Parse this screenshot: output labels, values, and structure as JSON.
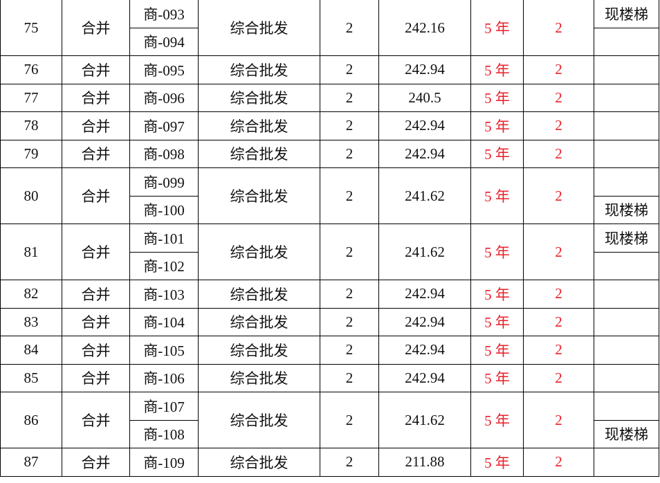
{
  "colors": {
    "text": "#111111",
    "highlight": "#e8202a",
    "border": "#000000"
  },
  "records": [
    {
      "id": "75",
      "type": "合并",
      "units": [
        "商-093",
        "商-094"
      ],
      "category": "综合批发",
      "floors": "2",
      "area": "242.16",
      "term": "5 年",
      "count": "2",
      "notes": [
        "现楼梯",
        ""
      ]
    },
    {
      "id": "76",
      "type": "合并",
      "units": [
        "商-095"
      ],
      "category": "综合批发",
      "floors": "2",
      "area": "242.94",
      "term": "5 年",
      "count": "2",
      "notes": [
        ""
      ]
    },
    {
      "id": "77",
      "type": "合并",
      "units": [
        "商-096"
      ],
      "category": "综合批发",
      "floors": "2",
      "area": "240.5",
      "term": "5 年",
      "count": "2",
      "notes": [
        ""
      ]
    },
    {
      "id": "78",
      "type": "合并",
      "units": [
        "商-097"
      ],
      "category": "综合批发",
      "floors": "2",
      "area": "242.94",
      "term": "5 年",
      "count": "2",
      "notes": [
        ""
      ]
    },
    {
      "id": "79",
      "type": "合并",
      "units": [
        "商-098"
      ],
      "category": "综合批发",
      "floors": "2",
      "area": "242.94",
      "term": "5 年",
      "count": "2",
      "notes": [
        ""
      ]
    },
    {
      "id": "80",
      "type": "合并",
      "units": [
        "商-099",
        "商-100"
      ],
      "category": "综合批发",
      "floors": "2",
      "area": "241.62",
      "term": "5 年",
      "count": "2",
      "notes": [
        "",
        "现楼梯"
      ]
    },
    {
      "id": "81",
      "type": "合并",
      "units": [
        "商-101",
        "商-102"
      ],
      "category": "综合批发",
      "floors": "2",
      "area": "241.62",
      "term": "5 年",
      "count": "2",
      "notes": [
        "现楼梯",
        ""
      ]
    },
    {
      "id": "82",
      "type": "合并",
      "units": [
        "商-103"
      ],
      "category": "综合批发",
      "floors": "2",
      "area": "242.94",
      "term": "5 年",
      "count": "2",
      "notes": [
        ""
      ]
    },
    {
      "id": "83",
      "type": "合并",
      "units": [
        "商-104"
      ],
      "category": "综合批发",
      "floors": "2",
      "area": "242.94",
      "term": "5 年",
      "count": "2",
      "notes": [
        ""
      ]
    },
    {
      "id": "84",
      "type": "合并",
      "units": [
        "商-105"
      ],
      "category": "综合批发",
      "floors": "2",
      "area": "242.94",
      "term": "5 年",
      "count": "2",
      "notes": [
        ""
      ]
    },
    {
      "id": "85",
      "type": "合并",
      "units": [
        "商-106"
      ],
      "category": "综合批发",
      "floors": "2",
      "area": "242.94",
      "term": "5 年",
      "count": "2",
      "notes": [
        ""
      ]
    },
    {
      "id": "86",
      "type": "合并",
      "units": [
        "商-107",
        "商-108"
      ],
      "category": "综合批发",
      "floors": "2",
      "area": "241.62",
      "term": "5 年",
      "count": "2",
      "notes": [
        "",
        "现楼梯"
      ]
    },
    {
      "id": "87",
      "type": "合并",
      "units": [
        "商-109"
      ],
      "category": "综合批发",
      "floors": "2",
      "area": "211.88",
      "term": "5 年",
      "count": "2",
      "notes": [
        ""
      ]
    }
  ]
}
